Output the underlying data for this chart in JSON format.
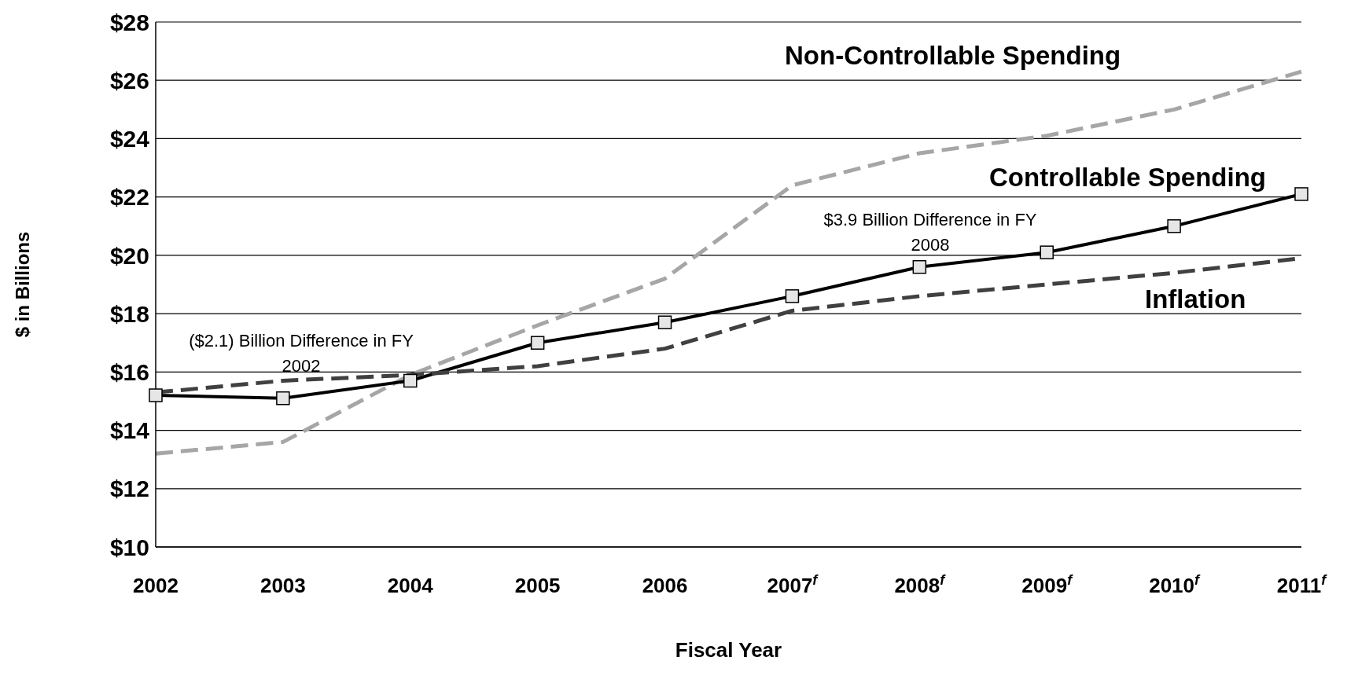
{
  "chart_data": {
    "type": "line",
    "xlabel": "Fiscal Year",
    "ylabel": "$ in Billions",
    "categories": [
      "2002",
      "2003",
      "2004",
      "2005",
      "2006",
      "2007$^{f}$",
      "2008$^{f}$",
      "2009$^{f}$",
      "2010$^{f}$",
      "2011$^{f}$"
    ],
    "series": [
      {
        "name": "Non-Controllable Spending",
        "color": "#a6a6a6",
        "line_style": "dashed",
        "marker": "none",
        "values": [
          13.2,
          13.6,
          15.9,
          17.6,
          19.2,
          22.4,
          23.5,
          24.1,
          25.0,
          26.3
        ]
      },
      {
        "name": "Controllable Spending",
        "color": "#000000",
        "line_style": "solid",
        "marker": "square",
        "values": [
          15.2,
          15.1,
          15.7,
          17.0,
          17.7,
          18.6,
          19.6,
          20.1,
          21.0,
          22.1
        ]
      },
      {
        "name": "Inflation",
        "color": "#404040",
        "line_style": "dashed",
        "marker": "none",
        "values": [
          15.3,
          15.7,
          15.9,
          16.2,
          16.8,
          18.1,
          18.6,
          19.0,
          19.4,
          19.9
        ]
      }
    ],
    "annotations": [
      "($2.1) Billion Difference in FY 2002",
      "$3.9 Billion Difference in FY 2008"
    ],
    "ylim": [
      10,
      28
    ],
    "yticks": [
      {
        "value": 10,
        "label": "$10"
      },
      {
        "value": 12,
        "label": "$12"
      },
      {
        "value": 14,
        "label": "$14"
      },
      {
        "value": 16,
        "label": "$16"
      },
      {
        "value": 18,
        "label": "$18"
      },
      {
        "value": 20,
        "label": "$20"
      },
      {
        "value": 22,
        "label": "$22"
      },
      {
        "value": 24,
        "label": "$24"
      },
      {
        "value": 26,
        "label": "$26"
      },
      {
        "value": 28,
        "label": "$28"
      }
    ],
    "grid": "y"
  }
}
